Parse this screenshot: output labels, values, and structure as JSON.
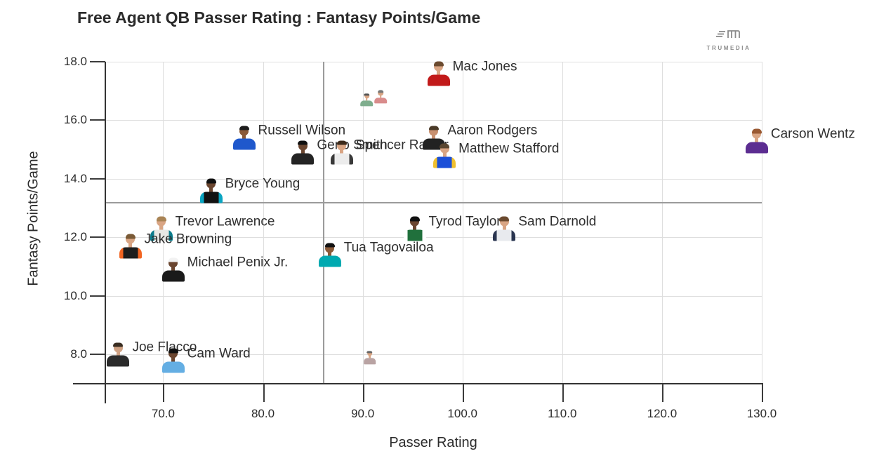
{
  "branding": {
    "logo_text": "TRUMEDIA"
  },
  "chart_data": {
    "type": "scatter",
    "title": "Free Agent QB Passer Rating : Fantasy Points/Game",
    "xlabel": "Passer Rating",
    "ylabel": "Fantasy Points/Game",
    "xlim": [
      64.2,
      130.0
    ],
    "ylim": [
      7.0,
      18.0
    ],
    "x_tick_values": [
      70,
      80,
      90,
      100,
      110,
      120,
      130
    ],
    "x_tick_labels": [
      "70.0",
      "80.0",
      "90.0",
      "100.0",
      "110.0",
      "120.0",
      "130.0"
    ],
    "y_tick_values": [
      18,
      16,
      14,
      12,
      10,
      8
    ],
    "y_tick_labels": [
      "18.0",
      "16.0",
      "14.0",
      "12.0",
      "10.0",
      "8.0"
    ],
    "grid": true,
    "legend": false,
    "reference_lines": {
      "x": 86.0,
      "y": 13.2
    },
    "points": [
      {
        "name": "Russell Wilson",
        "x": 78.1,
        "y": 15.4,
        "jersey": "#1f58cc",
        "accent": null,
        "skin": "#8a5a38",
        "hair": "#1c1c1c",
        "size": 1
      },
      {
        "name": "Geno Smith",
        "x": 84.0,
        "y": 14.9,
        "jersey": "#242424",
        "accent": null,
        "skin": "#6b4630",
        "hair": "#111111",
        "size": 1
      },
      {
        "name": "Spencer Rattler",
        "x": 87.9,
        "y": 14.9,
        "jersey": "#ececec",
        "accent": "#3a3a3a",
        "skin": "#d9a584",
        "hair": "#3c2a1a",
        "size": 1
      },
      {
        "name": "Aaron Rodgers",
        "x": 97.1,
        "y": 15.4,
        "jersey": "#222222",
        "accent": null,
        "skin": "#c89070",
        "hair": "#4a3a28",
        "size": 1
      },
      {
        "name": "Matthew Stafford",
        "x": 98.2,
        "y": 14.8,
        "jersey": "#1b4fd8",
        "accent": "#f0c030",
        "skin": "#d9a584",
        "hair": "#5a4630",
        "size": 1
      },
      {
        "name": "Mac Jones",
        "x": 97.6,
        "y": 17.6,
        "jersey": "#c21a1a",
        "accent": null,
        "skin": "#d9a584",
        "hair": "#6b4a2f",
        "size": 1
      },
      {
        "name": "Carson Wentz",
        "x": 129.5,
        "y": 15.3,
        "jersey": "#5c2d91",
        "accent": null,
        "skin": "#d9a584",
        "hair": "#9a5a33",
        "size": 1
      },
      {
        "name": "Bryce Young",
        "x": 74.8,
        "y": 13.6,
        "jersey": "#121212",
        "accent": "#0aa5c2",
        "skin": "#6b4630",
        "hair": "#111111",
        "size": 1
      },
      {
        "name": "Trevor Lawrence",
        "x": 69.8,
        "y": 12.3,
        "jersey": "#e8e8e4",
        "accent": "#0a7c8c",
        "skin": "#d9a584",
        "hair": "#a98455",
        "size": 1
      },
      {
        "name": "Jake Browning",
        "x": 66.7,
        "y": 11.7,
        "jersey": "#1d1d1d",
        "accent": "#f26522",
        "skin": "#d9a584",
        "hair": "#7a5a36",
        "size": 1
      },
      {
        "name": "Michael Penix Jr.",
        "x": 71.0,
        "y": 10.9,
        "jersey": "#1a1a1a",
        "accent": null,
        "skin": "#6b4630",
        "hair": "#f2f2f2",
        "size": 1
      },
      {
        "name": "Tua Tagovailoa",
        "x": 86.7,
        "y": 11.4,
        "jersey": "#00a9b0",
        "accent": null,
        "skin": "#8a5a38",
        "hair": "#111111",
        "size": 1
      },
      {
        "name": "Tyrod Taylor",
        "x": 95.2,
        "y": 12.3,
        "jersey": "#20703c",
        "accent": "#ffffff",
        "skin": "#6b4630",
        "hair": "#111111",
        "size": 1
      },
      {
        "name": "Sam Darnold",
        "x": 104.2,
        "y": 12.3,
        "jersey": "#e8eaee",
        "accent": "#2a3550",
        "skin": "#d9a584",
        "hair": "#6b4a2f",
        "size": 1
      },
      {
        "name": "Joe Flacco",
        "x": 65.5,
        "y": 8.0,
        "jersey": "#2b2b2b",
        "accent": null,
        "skin": "#cfa183",
        "hair": "#3a2e22",
        "size": 1
      },
      {
        "name": "Cam Ward",
        "x": 71.0,
        "y": 7.8,
        "jersey": "#64aee3",
        "accent": null,
        "skin": "#6b4630",
        "hair": "#111111",
        "size": 1
      },
      {
        "name": "",
        "x": 90.4,
        "y": 16.7,
        "jersey": "#7fae8e",
        "accent": null,
        "skin": "#d9a584",
        "hair": "#555555",
        "size": 0.55
      },
      {
        "name": "",
        "x": 91.8,
        "y": 16.8,
        "jersey": "#d98c8c",
        "accent": null,
        "skin": "#d9a584",
        "hair": "#777777",
        "size": 0.55
      },
      {
        "name": "",
        "x": 90.7,
        "y": 7.9,
        "jersey": "#b9a3a3",
        "accent": null,
        "skin": "#d9a584",
        "hair": "#666666",
        "size": 0.55
      }
    ]
  }
}
